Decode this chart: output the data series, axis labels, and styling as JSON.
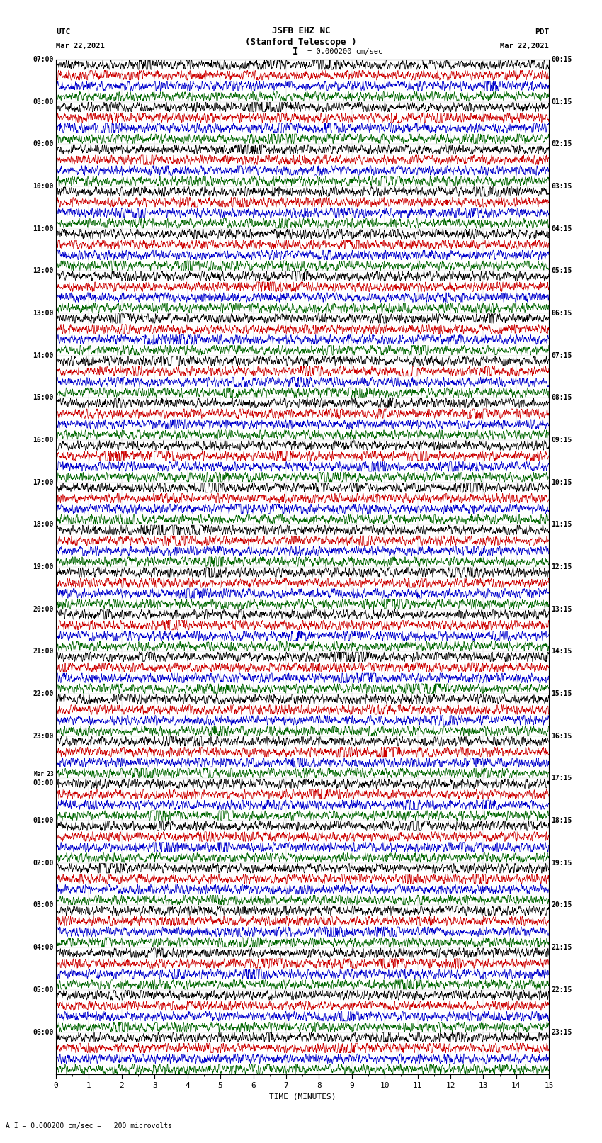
{
  "title_line1": "JSFB EHZ NC",
  "title_line2": "(Stanford Telescope )",
  "scale_label": "I = 0.000200 cm/sec",
  "footer_label": "A I = 0.000200 cm/sec =   200 microvolts",
  "xlabel": "TIME (MINUTES)",
  "bg_color": "#ffffff",
  "trace_colors": [
    "#000000",
    "#cc0000",
    "#0000cc",
    "#006600"
  ],
  "left_times_utc": [
    "07:00",
    "08:00",
    "09:00",
    "10:00",
    "11:00",
    "12:00",
    "13:00",
    "14:00",
    "15:00",
    "16:00",
    "17:00",
    "18:00",
    "19:00",
    "20:00",
    "21:00",
    "22:00",
    "23:00",
    "Mar 23|00:00",
    "01:00",
    "02:00",
    "03:00",
    "04:00",
    "05:00",
    "06:00"
  ],
  "right_times_pdt": [
    "00:15",
    "01:15",
    "02:15",
    "03:15",
    "04:15",
    "05:15",
    "06:15",
    "07:15",
    "08:15",
    "09:15",
    "10:15",
    "11:15",
    "12:15",
    "13:15",
    "14:15",
    "15:15",
    "16:15",
    "17:15",
    "18:15",
    "19:15",
    "20:15",
    "21:15",
    "22:15",
    "23:15"
  ],
  "num_hours": 24,
  "traces_per_hour": 4,
  "xmin": 0,
  "xmax": 15,
  "noise_seed": 42
}
